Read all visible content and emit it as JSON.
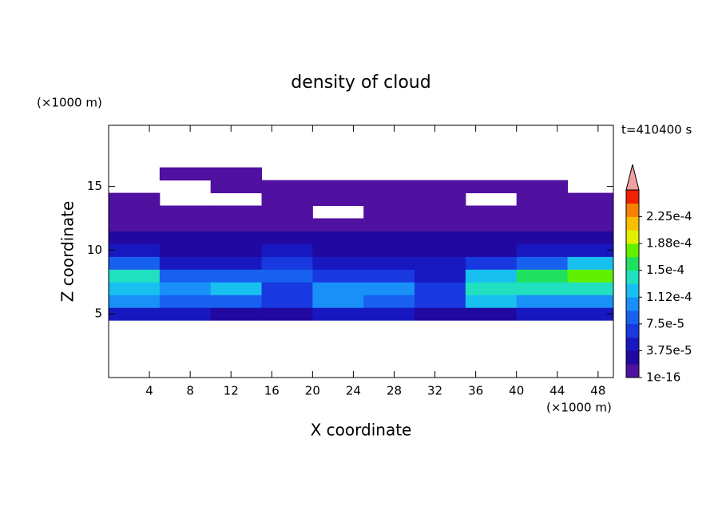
{
  "chart_data": {
    "type": "contour",
    "title": "density of cloud",
    "xlabel": "X coordinate",
    "ylabel": "Z coordinate",
    "x_unit": "(×1000 m)",
    "y_unit": "(×1000 m)",
    "time_label": "t=410400 s",
    "xlim": [
      0,
      49.5
    ],
    "ylim": [
      0,
      19.8
    ],
    "xticks": [
      4,
      8,
      12,
      16,
      20,
      24,
      28,
      32,
      36,
      40,
      44,
      48
    ],
    "yticks": [
      5,
      10,
      15
    ],
    "x": [
      2.5,
      7.5,
      12.5,
      17.5,
      22.5,
      27.5,
      32.5,
      37.5,
      42.5,
      47.5
    ],
    "z": [
      5,
      6,
      7,
      8,
      9,
      10,
      11,
      12,
      13,
      14,
      15,
      16
    ],
    "values": [
      [
        5e-05,
        4e-05,
        3e-05,
        2e-05,
        4e-05,
        4e-05,
        3e-05,
        2e-05,
        4e-05,
        5e-05
      ],
      [
        0.0001,
        9e-05,
        8e-05,
        6e-05,
        0.0001,
        9e-05,
        7e-05,
        0.00012,
        0.00011,
        0.00011
      ],
      [
        0.00013,
        0.00011,
        0.00012,
        7e-05,
        0.00011,
        0.0001,
        6e-05,
        0.00014,
        0.00015,
        0.00014
      ],
      [
        0.00014,
        9e-05,
        8e-05,
        8e-05,
        6e-05,
        6e-05,
        5e-05,
        0.00013,
        0.00016,
        0.00017
      ],
      [
        9e-05,
        5e-05,
        4e-05,
        7e-05,
        4e-05,
        4e-05,
        4e-05,
        6e-05,
        9e-05,
        0.00012
      ],
      [
        4e-05,
        3e-05,
        2e-05,
        5e-05,
        3e-05,
        3e-05,
        3e-05,
        3e-05,
        4e-05,
        5e-05
      ],
      [
        3e-05,
        2e-05,
        2e-05,
        3e-05,
        2e-05,
        2e-05,
        2e-05,
        2e-05,
        2e-05,
        3e-05
      ],
      [
        1e-05,
        1e-05,
        1e-05,
        1e-05,
        1e-05,
        1e-05,
        1e-05,
        1e-05,
        1e-05,
        1e-05
      ],
      [
        1e-05,
        1e-05,
        1e-05,
        5e-06,
        null,
        5e-06,
        1e-05,
        5e-06,
        1e-05,
        1e-05
      ],
      [
        5e-06,
        null,
        null,
        5e-06,
        5e-06,
        5e-06,
        5e-06,
        null,
        5e-06,
        5e-06
      ],
      [
        null,
        null,
        5e-06,
        5e-06,
        5e-06,
        5e-06,
        5e-06,
        5e-06,
        5e-06,
        null
      ],
      [
        null,
        5e-06,
        5e-06,
        null,
        null,
        null,
        null,
        null,
        null,
        null
      ]
    ],
    "colorbar_lim": [
      1e-16,
      0.0002625
    ],
    "colorbar_step": 1.875e-05,
    "colorbar_ticks": [
      {
        "value": 1e-16,
        "label": "1e-16"
      },
      {
        "value": 3.75e-05,
        "label": "3.75e-5"
      },
      {
        "value": 7.5e-05,
        "label": "7.5e-5"
      },
      {
        "value": 0.0001125,
        "label": "1.12e-4"
      },
      {
        "value": 0.00015,
        "label": "1.5e-4"
      },
      {
        "value": 0.0001875,
        "label": "1.88e-4"
      },
      {
        "value": 0.000225,
        "label": "2.25e-4"
      }
    ],
    "colors": [
      "#5010a0",
      "#2008a0",
      "#1818c0",
      "#1838e0",
      "#1860f0",
      "#1890f8",
      "#18c0f0",
      "#20e0c0",
      "#20e060",
      "#60f000",
      "#e0f000",
      "#f8c000",
      "#f88000",
      "#f02000"
    ],
    "extend_color": "#f0a0a0"
  }
}
